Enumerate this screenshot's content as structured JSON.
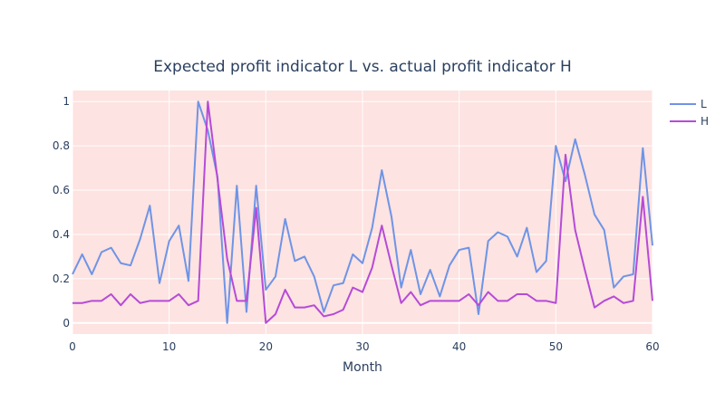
{
  "chart_data": {
    "type": "line",
    "title": "Expected profit indicator L  vs. actual profit indicator H",
    "xlabel": "Month",
    "ylabel": "",
    "xlim": [
      0,
      60
    ],
    "ylim": [
      -0.05,
      1.05
    ],
    "x_ticks": [
      0,
      10,
      20,
      30,
      40,
      50,
      60
    ],
    "y_ticks": [
      0,
      0.2,
      0.4,
      0.6,
      0.8,
      1
    ],
    "y_tick_labels": [
      "0",
      "0.2",
      "0.4",
      "0.6",
      "0.8",
      "1"
    ],
    "grid": true,
    "legend_position": "top-right",
    "plot_background": "#fde3e1",
    "series": [
      {
        "name": "L",
        "color": "#6f94e6",
        "x": [
          0,
          1,
          2,
          3,
          4,
          5,
          6,
          7,
          8,
          9,
          10,
          11,
          12,
          13,
          14,
          15,
          16,
          17,
          18,
          19,
          20,
          21,
          22,
          23,
          24,
          25,
          26,
          27,
          28,
          29,
          30,
          31,
          32,
          33,
          34,
          35,
          36,
          37,
          38,
          39,
          40,
          41,
          42,
          43,
          44,
          45,
          46,
          47,
          48,
          49,
          50,
          51,
          52,
          53,
          54,
          55,
          56,
          57,
          58,
          59,
          60
        ],
        "y": [
          0.22,
          0.31,
          0.22,
          0.32,
          0.34,
          0.27,
          0.26,
          0.38,
          0.53,
          0.18,
          0.37,
          0.44,
          0.19,
          1.0,
          0.87,
          0.66,
          0.0,
          0.62,
          0.05,
          0.62,
          0.15,
          0.21,
          0.47,
          0.28,
          0.3,
          0.21,
          0.05,
          0.17,
          0.18,
          0.31,
          0.27,
          0.43,
          0.69,
          0.48,
          0.16,
          0.33,
          0.13,
          0.24,
          0.12,
          0.26,
          0.33,
          0.34,
          0.04,
          0.37,
          0.41,
          0.39,
          0.3,
          0.43,
          0.23,
          0.28,
          0.8,
          0.64,
          0.83,
          0.67,
          0.49,
          0.42,
          0.16,
          0.21,
          0.22,
          0.79,
          0.35
        ]
      },
      {
        "name": "H",
        "color": "#b54bd8",
        "x": [
          0,
          1,
          2,
          3,
          4,
          5,
          6,
          7,
          8,
          9,
          10,
          11,
          12,
          13,
          14,
          15,
          16,
          17,
          18,
          19,
          20,
          21,
          22,
          23,
          24,
          25,
          26,
          27,
          28,
          29,
          30,
          31,
          32,
          33,
          34,
          35,
          36,
          37,
          38,
          39,
          40,
          41,
          42,
          43,
          44,
          45,
          46,
          47,
          48,
          49,
          50,
          51,
          52,
          53,
          54,
          55,
          56,
          57,
          58,
          59,
          60
        ],
        "y": [
          0.09,
          0.09,
          0.1,
          0.1,
          0.13,
          0.08,
          0.13,
          0.09,
          0.1,
          0.1,
          0.1,
          0.13,
          0.08,
          0.1,
          1.0,
          0.65,
          0.29,
          0.1,
          0.1,
          0.52,
          0.0,
          0.04,
          0.15,
          0.07,
          0.07,
          0.08,
          0.03,
          0.04,
          0.06,
          0.16,
          0.14,
          0.25,
          0.44,
          0.26,
          0.09,
          0.14,
          0.08,
          0.1,
          0.1,
          0.1,
          0.1,
          0.13,
          0.08,
          0.14,
          0.1,
          0.1,
          0.13,
          0.13,
          0.1,
          0.1,
          0.09,
          0.76,
          0.42,
          0.24,
          0.07,
          0.1,
          0.12,
          0.09,
          0.1,
          0.57,
          0.1
        ]
      }
    ]
  }
}
